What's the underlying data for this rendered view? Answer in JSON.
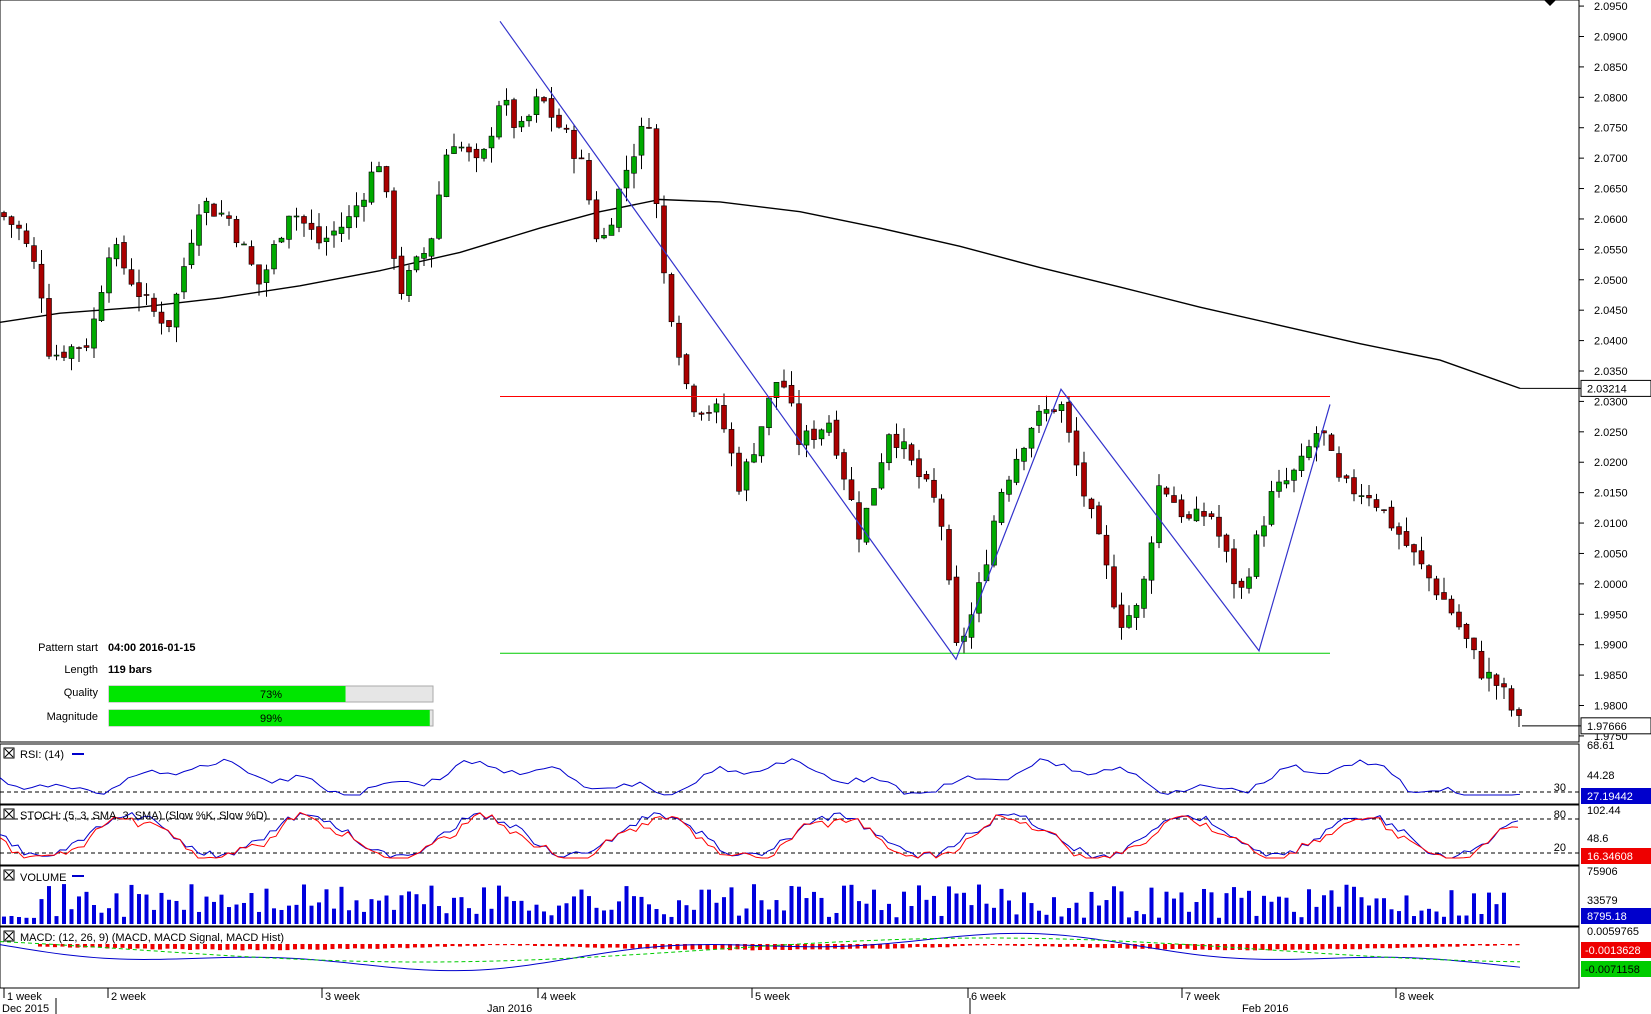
{
  "chart_data": {
    "type": "candlestick",
    "main": {
      "ylim": [
        1.974,
        2.096
      ],
      "yticks": [
        "2.0950",
        "2.0900",
        "2.0850",
        "2.0800",
        "2.0750",
        "2.0700",
        "2.0650",
        "2.0600",
        "2.0550",
        "2.0500",
        "2.0450",
        "2.0400",
        "2.0350",
        "2.0300",
        "2.0250",
        "2.0200",
        "2.0150",
        "2.0100",
        "2.0050",
        "2.0000",
        "1.9950",
        "1.9900",
        "1.9850",
        "1.9800",
        "1.9750"
      ],
      "current_price_label": "1.97666",
      "current_price": 1.97666,
      "ma_label": "2.03214",
      "ma_value": 2.03214,
      "resistance_level": 2.0308,
      "support_level": 1.9886,
      "colors": {
        "up": "#00aa00",
        "down": "#aa0000",
        "ma": "#000000",
        "pattern": "#3333cc",
        "resistance": "#ff0000",
        "support": "#00cc00"
      }
    },
    "pattern_info": {
      "start_label": "Pattern start",
      "start_value": "04:00 2016-01-15",
      "length_label": "Length",
      "length_value": "119 bars",
      "quality_label": "Quality",
      "quality_text": "73%",
      "quality_value": 0.73,
      "magnitude_label": "Magnitude",
      "magnitude_text": "99%",
      "magnitude_value": 0.99
    },
    "rsi": {
      "label": "RSI: (14)",
      "ticks": [
        "68.61",
        "44.28"
      ],
      "level": "30",
      "current": "27.19442"
    },
    "stoch": {
      "label": "STOCH: (5, 3, SMA, 3, SMA) (Slow %K, Slow %D)",
      "ticks": [
        "102.44",
        "48.6"
      ],
      "levels": [
        "80",
        "20"
      ],
      "current": "16.34608"
    },
    "volume": {
      "label": "VOLUME",
      "ticks": [
        "75906",
        "33579"
      ],
      "current": "8795.18"
    },
    "macd": {
      "label": "MACD: (12, 26, 9) (MACD, MACD Signal, MACD Hist)",
      "ticks": [
        "0.0059765"
      ],
      "hist_current": "-0.0013628",
      "signal_current": "-0.0071158"
    },
    "x_axis": {
      "weeks": [
        "1 week",
        "2 week",
        "3 week",
        "4 week",
        "5 week",
        "6 week",
        "7 week",
        "8 week"
      ],
      "months": [
        "Dec 2015",
        "Jan 2016",
        "Feb 2016"
      ]
    }
  }
}
